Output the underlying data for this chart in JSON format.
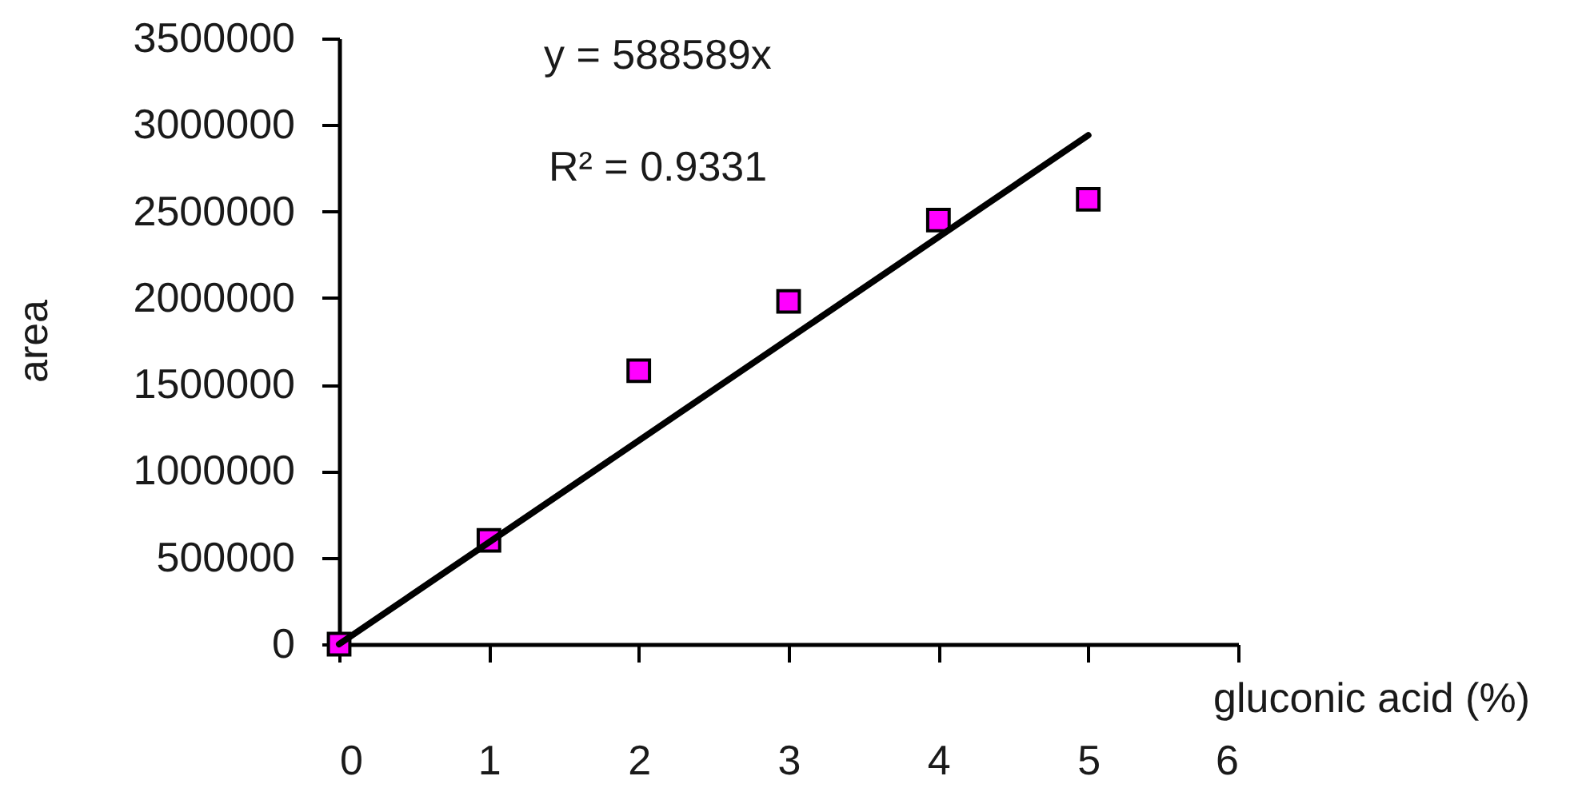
{
  "chart_data": {
    "type": "scatter",
    "xlabel": "gluconic acid (%)",
    "ylabel": "area",
    "x": [
      0,
      1,
      2,
      3,
      4,
      5
    ],
    "series": [
      {
        "color": "#ff00ff",
        "marker": "square",
        "values": [
          0,
          600000,
          1580000,
          1980000,
          2450000,
          2570000
        ]
      },
      {
        "type": "line",
        "color": "#000000",
        "line_style": "solid",
        "x": [
          0,
          5
        ],
        "values": [
          0,
          2940000
        ]
      }
    ],
    "xlim": [
      0,
      6
    ],
    "ylim": [
      0,
      3500000
    ],
    "xticks": [
      0,
      1,
      2,
      3,
      4,
      5,
      6
    ],
    "yticks": [
      0,
      500000,
      1000000,
      1500000,
      2000000,
      2500000,
      3000000,
      3500000
    ],
    "annotations": [
      "y = 588589x",
      "R² = 0.9331"
    ],
    "grid": false
  }
}
